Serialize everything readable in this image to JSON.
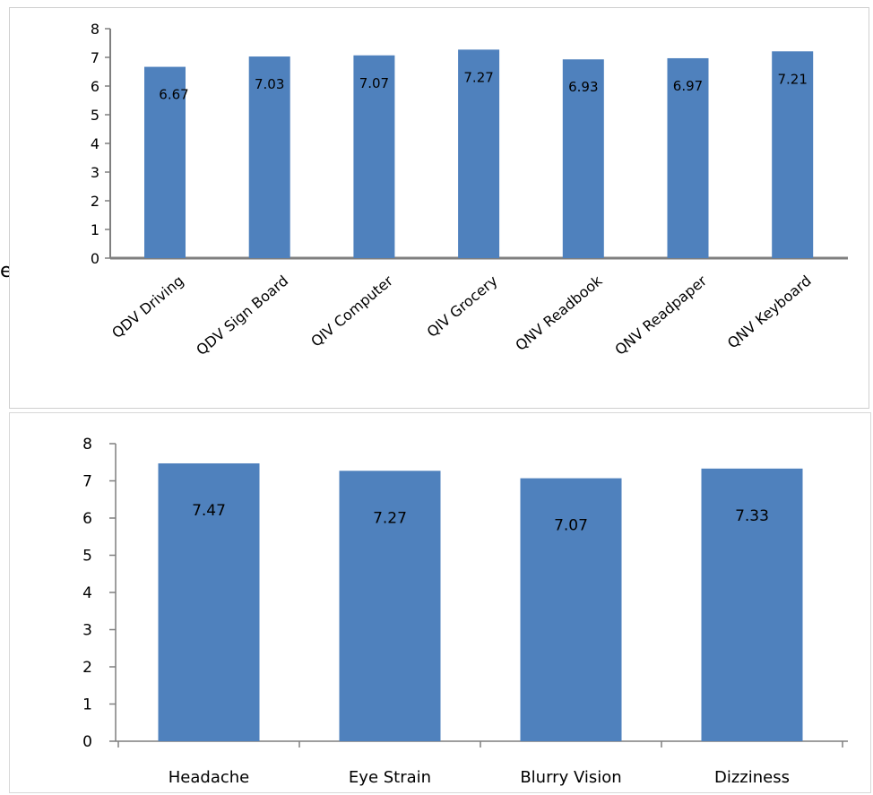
{
  "edge_text": "e",
  "chart_data": [
    {
      "type": "bar",
      "categories": [
        "QDV Driving",
        "QDV Sign Board",
        "QIV Computer",
        "QIV Grocery",
        "QNV Readbook",
        "QNV Readpaper",
        "QNV Keyboard"
      ],
      "values": [
        6.67,
        7.03,
        7.07,
        7.27,
        6.93,
        6.97,
        7.21
      ],
      "value_labels": [
        "6.67",
        "7.03",
        "7.07",
        "7.27",
        "6.93",
        "6.97",
        "7.21"
      ],
      "yticks": [
        "0",
        "1",
        "2",
        "3",
        "4",
        "5",
        "6",
        "7",
        "8"
      ],
      "ylim": [
        0,
        8
      ],
      "title": "",
      "xlabel": "",
      "ylabel": "",
      "bar_color": "#4f81bd",
      "grid": false,
      "legend": "none"
    },
    {
      "type": "bar",
      "categories": [
        "Headache",
        "Eye Strain",
        "Blurry Vision",
        "Dizziness"
      ],
      "values": [
        7.47,
        7.27,
        7.07,
        7.33
      ],
      "value_labels": [
        "7.47",
        "7.27",
        "7.07",
        "7.33"
      ],
      "yticks": [
        "0",
        "1",
        "2",
        "3",
        "4",
        "5",
        "6",
        "7",
        "8"
      ],
      "ylim": [
        0,
        8
      ],
      "title": "",
      "xlabel": "",
      "ylabel": "",
      "bar_color": "#4f81bd",
      "grid": false,
      "legend": "none"
    }
  ]
}
